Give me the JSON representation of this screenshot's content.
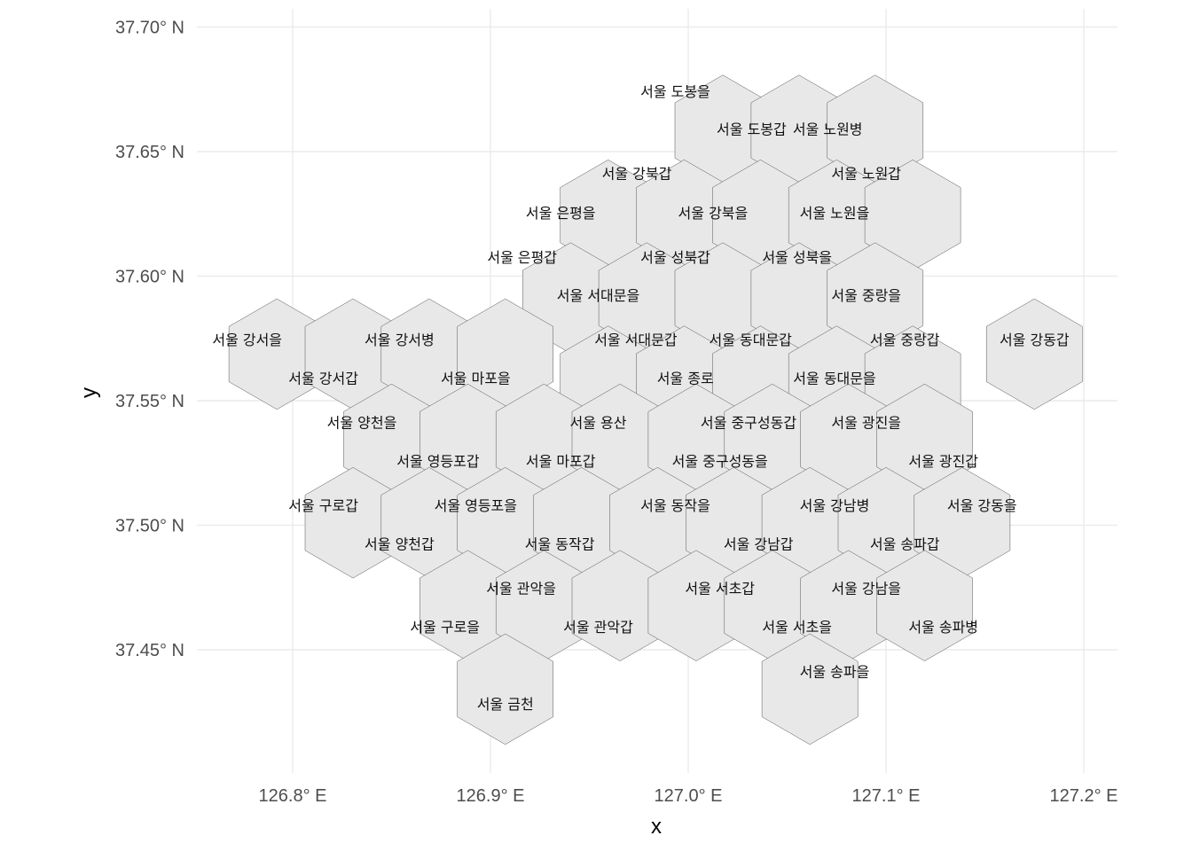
{
  "chart_data": {
    "type": "hexbin-map",
    "xlabel": "x",
    "ylabel": "y",
    "xlim": [
      126.745,
      127.21
    ],
    "ylim": [
      37.405,
      37.708
    ],
    "grid": true,
    "x_ticks": [
      {
        "value": 126.8,
        "label": "126.8° E"
      },
      {
        "value": 126.9,
        "label": "126.9° E"
      },
      {
        "value": 127.0,
        "label": "127.0° E"
      },
      {
        "value": 127.1,
        "label": "127.1° E"
      },
      {
        "value": 127.2,
        "label": "127.2° E"
      }
    ],
    "y_ticks": [
      {
        "value": 37.45,
        "label": "37.45° N"
      },
      {
        "value": 37.5,
        "label": "37.50° N"
      },
      {
        "value": 37.55,
        "label": "37.55° N"
      },
      {
        "value": 37.6,
        "label": "37.60° N"
      },
      {
        "value": 37.65,
        "label": "37.65° N"
      },
      {
        "value": 37.7,
        "label": "37.70° N"
      }
    ],
    "hex_radius_deg": 0.0222,
    "hexagons": [
      {
        "lon": 127.0175,
        "lat": 37.6585
      },
      {
        "lon": 127.056,
        "lat": 37.6585
      },
      {
        "lon": 127.0945,
        "lat": 37.6585
      },
      {
        "lon": 126.9595,
        "lat": 37.6245
      },
      {
        "lon": 126.998,
        "lat": 37.6245
      },
      {
        "lon": 127.0365,
        "lat": 37.6245
      },
      {
        "lon": 127.075,
        "lat": 37.6245
      },
      {
        "lon": 127.1135,
        "lat": 37.6245
      },
      {
        "lon": 126.9405,
        "lat": 37.5912
      },
      {
        "lon": 126.979,
        "lat": 37.5912
      },
      {
        "lon": 127.0175,
        "lat": 37.5912
      },
      {
        "lon": 127.056,
        "lat": 37.5912
      },
      {
        "lon": 127.0945,
        "lat": 37.5912
      },
      {
        "lon": 126.792,
        "lat": 37.5687
      },
      {
        "lon": 126.8305,
        "lat": 37.5687
      },
      {
        "lon": 126.869,
        "lat": 37.5687
      },
      {
        "lon": 126.9075,
        "lat": 37.5687
      },
      {
        "lon": 126.9595,
        "lat": 37.5578
      },
      {
        "lon": 126.998,
        "lat": 37.5578
      },
      {
        "lon": 127.0365,
        "lat": 37.5578
      },
      {
        "lon": 127.075,
        "lat": 37.5578
      },
      {
        "lon": 127.1135,
        "lat": 37.5578
      },
      {
        "lon": 127.175,
        "lat": 37.5687
      },
      {
        "lon": 126.85,
        "lat": 37.5345
      },
      {
        "lon": 126.8885,
        "lat": 37.5345
      },
      {
        "lon": 126.927,
        "lat": 37.5345
      },
      {
        "lon": 126.9655,
        "lat": 37.5345
      },
      {
        "lon": 127.004,
        "lat": 37.5345
      },
      {
        "lon": 127.0425,
        "lat": 37.5345
      },
      {
        "lon": 127.081,
        "lat": 37.5345
      },
      {
        "lon": 127.1195,
        "lat": 37.5345
      },
      {
        "lon": 126.8305,
        "lat": 37.501
      },
      {
        "lon": 126.869,
        "lat": 37.501
      },
      {
        "lon": 126.9075,
        "lat": 37.501
      },
      {
        "lon": 126.946,
        "lat": 37.501
      },
      {
        "lon": 126.9845,
        "lat": 37.501
      },
      {
        "lon": 127.023,
        "lat": 37.501
      },
      {
        "lon": 127.0615,
        "lat": 37.501
      },
      {
        "lon": 127.1,
        "lat": 37.501
      },
      {
        "lon": 127.1385,
        "lat": 37.501
      },
      {
        "lon": 126.8885,
        "lat": 37.4677
      },
      {
        "lon": 126.927,
        "lat": 37.4677
      },
      {
        "lon": 126.9655,
        "lat": 37.4677
      },
      {
        "lon": 127.004,
        "lat": 37.4677
      },
      {
        "lon": 127.0425,
        "lat": 37.4677
      },
      {
        "lon": 127.081,
        "lat": 37.4677
      },
      {
        "lon": 127.1195,
        "lat": 37.4677
      },
      {
        "lon": 126.9075,
        "lat": 37.4342
      },
      {
        "lon": 127.0615,
        "lat": 37.4342
      }
    ],
    "labels": [
      {
        "text": "서울 도봉을",
        "lon": 126.9935,
        "lat": 37.6742
      },
      {
        "text": "서울 도봉갑",
        "lon": 127.032,
        "lat": 37.659
      },
      {
        "text": "서울 노원병",
        "lon": 127.0705,
        "lat": 37.659
      },
      {
        "text": "서울 노원갑",
        "lon": 127.09,
        "lat": 37.6412
      },
      {
        "text": "서울 강북갑",
        "lon": 126.974,
        "lat": 37.6412
      },
      {
        "text": "서울 은평을",
        "lon": 126.9355,
        "lat": 37.6255
      },
      {
        "text": "서울 강북을",
        "lon": 127.0125,
        "lat": 37.6255
      },
      {
        "text": "서울 노원을",
        "lon": 127.074,
        "lat": 37.6255
      },
      {
        "text": "서울 은평갑",
        "lon": 126.916,
        "lat": 37.6077
      },
      {
        "text": "서울 성북갑",
        "lon": 126.9935,
        "lat": 37.6077
      },
      {
        "text": "서울 성북을",
        "lon": 127.055,
        "lat": 37.6077
      },
      {
        "text": "서울 서대문을",
        "lon": 126.9545,
        "lat": 37.5923
      },
      {
        "text": "서울 중랑을",
        "lon": 127.09,
        "lat": 37.5923
      },
      {
        "text": "서울 강서을",
        "lon": 126.777,
        "lat": 37.5745
      },
      {
        "text": "서울 강서병",
        "lon": 126.854,
        "lat": 37.5745
      },
      {
        "text": "서울 서대문갑",
        "lon": 126.9735,
        "lat": 37.5745
      },
      {
        "text": "서울 동대문갑",
        "lon": 127.0315,
        "lat": 37.5745
      },
      {
        "text": "서울 중랑갑",
        "lon": 127.1095,
        "lat": 37.5745
      },
      {
        "text": "서울 강동갑",
        "lon": 127.175,
        "lat": 37.5745
      },
      {
        "text": "서울 강서갑",
        "lon": 126.8155,
        "lat": 37.559
      },
      {
        "text": "서울 마포을",
        "lon": 126.8925,
        "lat": 37.559
      },
      {
        "text": "서울 종로",
        "lon": 126.9985,
        "lat": 37.559
      },
      {
        "text": "서울 동대문을",
        "lon": 127.074,
        "lat": 37.559
      },
      {
        "text": "서울 양천을",
        "lon": 126.835,
        "lat": 37.5413
      },
      {
        "text": "서울 용산",
        "lon": 126.9545,
        "lat": 37.5413
      },
      {
        "text": "서울 중구성동갑",
        "lon": 127.0305,
        "lat": 37.5413
      },
      {
        "text": "서울 광진을",
        "lon": 127.09,
        "lat": 37.5413
      },
      {
        "text": "서울 영등포갑",
        "lon": 126.8735,
        "lat": 37.5258
      },
      {
        "text": "서울 마포갑",
        "lon": 126.9355,
        "lat": 37.5258
      },
      {
        "text": "서울 중구성동을",
        "lon": 127.016,
        "lat": 37.5258
      },
      {
        "text": "서울 광진갑",
        "lon": 127.129,
        "lat": 37.5258
      },
      {
        "text": "서울 구로갑",
        "lon": 126.8155,
        "lat": 37.508
      },
      {
        "text": "서울 영등포을",
        "lon": 126.8925,
        "lat": 37.508
      },
      {
        "text": "서울 동작을",
        "lon": 126.9935,
        "lat": 37.508
      },
      {
        "text": "서울 강남병",
        "lon": 127.074,
        "lat": 37.508
      },
      {
        "text": "서울 강동을",
        "lon": 127.1485,
        "lat": 37.508
      },
      {
        "text": "서울 양천갑",
        "lon": 126.854,
        "lat": 37.4925
      },
      {
        "text": "서울 동작갑",
        "lon": 126.935,
        "lat": 37.4925
      },
      {
        "text": "서울 강남갑",
        "lon": 127.0355,
        "lat": 37.4925
      },
      {
        "text": "서울 송파갑",
        "lon": 127.1095,
        "lat": 37.4925
      },
      {
        "text": "서울 관악을",
        "lon": 126.9155,
        "lat": 37.4747
      },
      {
        "text": "서울 서초갑",
        "lon": 127.016,
        "lat": 37.4747
      },
      {
        "text": "서울 강남을",
        "lon": 127.09,
        "lat": 37.4747
      },
      {
        "text": "서울 구로을",
        "lon": 126.877,
        "lat": 37.4592
      },
      {
        "text": "서울 관악갑",
        "lon": 126.9545,
        "lat": 37.4592
      },
      {
        "text": "서울 서초을",
        "lon": 127.055,
        "lat": 37.4592
      },
      {
        "text": "서울 송파병",
        "lon": 127.129,
        "lat": 37.4592
      },
      {
        "text": "서울 송파을",
        "lon": 127.074,
        "lat": 37.4413
      },
      {
        "text": "서울 금천",
        "lon": 126.9075,
        "lat": 37.4283
      }
    ]
  }
}
